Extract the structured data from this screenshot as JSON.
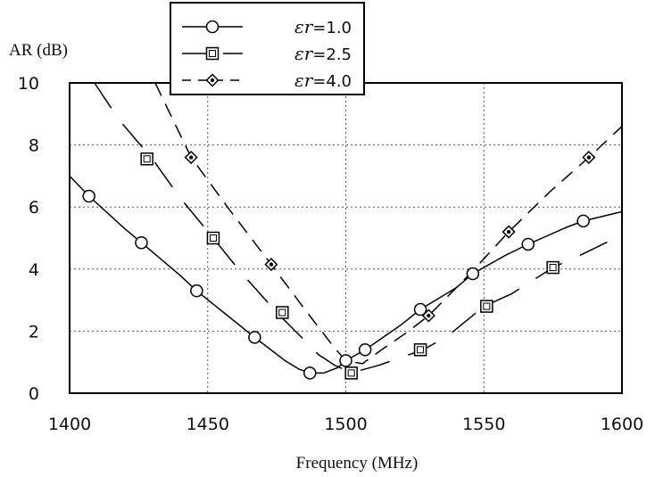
{
  "chart_data": {
    "type": "line",
    "xlabel": "Frequency (MHz)",
    "ylabel": "AR (dB)",
    "xlim": [
      1400,
      1600
    ],
    "ylim": [
      0,
      10
    ],
    "xticks": [
      1400,
      1450,
      1500,
      1550,
      1600
    ],
    "yticks": [
      0,
      2,
      4,
      6,
      8,
      10
    ],
    "grid": true,
    "legend_position": "top-left (above plot)",
    "legend_symbol": "εr",
    "series": [
      {
        "name": "=1.0",
        "line": "solid",
        "marker": "circle",
        "x": [
          1400,
          1407,
          1420,
          1426,
          1440,
          1446,
          1460,
          1467,
          1478,
          1483,
          1487,
          1492,
          1497,
          1500,
          1507,
          1520,
          1527,
          1540,
          1546,
          1558,
          1566,
          1580,
          1586,
          1600
        ],
        "y": [
          7.0,
          6.35,
          5.3,
          4.85,
          3.8,
          3.3,
          2.3,
          1.8,
          1.05,
          0.78,
          0.65,
          0.65,
          0.82,
          1.05,
          1.4,
          2.2,
          2.7,
          3.4,
          3.85,
          4.45,
          4.8,
          5.35,
          5.55,
          5.85
        ],
        "marker_x": [
          1407,
          1426,
          1446,
          1467,
          1487,
          1500,
          1507,
          1527,
          1546,
          1566,
          1586
        ],
        "marker_y": [
          6.35,
          4.85,
          3.3,
          1.8,
          0.65,
          1.05,
          1.4,
          2.7,
          3.85,
          4.8,
          5.55
        ]
      },
      {
        "name": "=2.5",
        "line": "long-dash",
        "marker": "square",
        "x": [
          1409,
          1418,
          1430,
          1440,
          1452,
          1462,
          1475,
          1484,
          1490,
          1496,
          1501,
          1503,
          1512,
          1528,
          1537,
          1550,
          1560,
          1575,
          1585,
          1600
        ],
        "y": [
          10.0,
          8.8,
          7.55,
          6.3,
          5.0,
          3.9,
          2.6,
          1.8,
          1.25,
          0.9,
          0.7,
          0.68,
          0.9,
          1.4,
          1.85,
          2.8,
          3.2,
          4.05,
          4.45,
          5.1
        ],
        "marker_x": [
          1428,
          1452,
          1477,
          1502,
          1527,
          1551,
          1575
        ],
        "marker_y": [
          7.55,
          5.0,
          2.6,
          0.65,
          1.4,
          2.8,
          4.05
        ]
      },
      {
        "name": "=4.0",
        "line": "dashed",
        "marker": "diamond-dot",
        "x": [
          1431,
          1444,
          1458,
          1473,
          1486,
          1496,
          1500,
          1506,
          1513,
          1522,
          1530,
          1545,
          1559,
          1574,
          1588,
          1600
        ],
        "y": [
          10.0,
          7.6,
          5.9,
          4.15,
          2.6,
          1.45,
          1.05,
          0.95,
          1.4,
          1.95,
          2.5,
          3.85,
          5.2,
          6.5,
          7.6,
          8.6
        ],
        "marker_x": [
          1444,
          1473,
          1530,
          1559,
          1588
        ],
        "marker_y": [
          7.6,
          4.15,
          2.5,
          5.2,
          7.6
        ]
      }
    ]
  }
}
